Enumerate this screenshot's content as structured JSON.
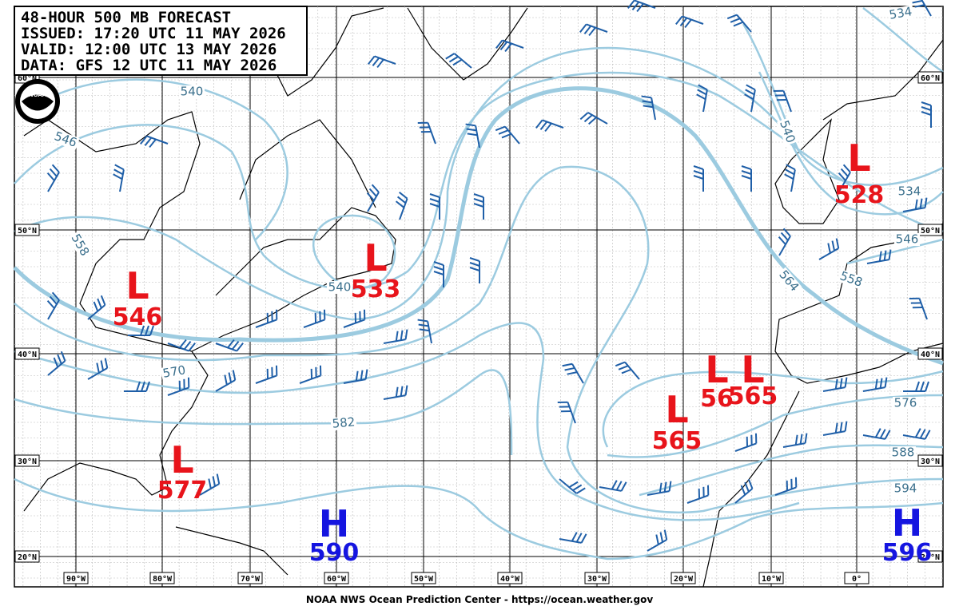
{
  "header": {
    "lines": [
      "48-HOUR 500 MB FORECAST",
      "ISSUED: 17:20 UTC 11 MAY 2026",
      "VALID:  12:00 UTC 13 MAY 2026",
      "DATA:   GFS 12 UTC 11 MAY 2026"
    ],
    "logo": "NOAA"
  },
  "centers": [
    {
      "type": "L",
      "value": "546"
    },
    {
      "type": "L",
      "value": "533"
    },
    {
      "type": "L",
      "value": "577"
    },
    {
      "type": "H",
      "value": "590"
    },
    {
      "type": "H",
      "value": "596"
    },
    {
      "type": "L",
      "value": "528"
    },
    {
      "type": "L",
      "value": "565"
    },
    {
      "type": "L",
      "value": "56"
    },
    {
      "type": "L",
      "value": "565"
    }
  ],
  "contour_labels": [
    "540",
    "546",
    "558",
    "540",
    "570",
    "582",
    "540",
    "564",
    "558",
    "534",
    "546",
    "576",
    "588",
    "594",
    "534"
  ],
  "latitudes": [
    "60°N",
    "50°N",
    "40°N",
    "30°N",
    "20°N"
  ],
  "longitudes": [
    "90°W",
    "80°W",
    "70°W",
    "60°W",
    "50°W",
    "40°W",
    "30°W",
    "20°W",
    "10°W",
    "0°"
  ],
  "footer": "NOAA NWS Ocean Prediction Center - https://ocean.weather.gov"
}
